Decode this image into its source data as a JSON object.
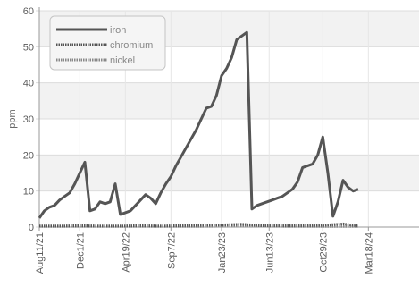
{
  "chart_data": {
    "type": "line",
    "ylabel": "ppm",
    "ylim": [
      0,
      60
    ],
    "yticks": [
      0,
      10,
      20,
      30,
      40,
      50,
      60
    ],
    "xlim": [
      0,
      37.5
    ],
    "xticks": [
      {
        "label": "Aug11/21",
        "x": 0
      },
      {
        "label": "Dec1/21",
        "x": 4
      },
      {
        "label": "Apr19/22",
        "x": 8.5
      },
      {
        "label": "Sep7/22",
        "x": 13
      },
      {
        "label": "Jan23/23",
        "x": 18
      },
      {
        "label": "Jun13/23",
        "x": 22.7
      },
      {
        "label": "Oct29/23",
        "x": 28
      },
      {
        "label": "Mar18/24",
        "x": 32.5
      }
    ],
    "grid": true,
    "legend_position": "top-left",
    "series": [
      {
        "name": "iron",
        "color": "#555555",
        "style": "solid",
        "points": [
          [
            0,
            2.5
          ],
          [
            0.5,
            4.5
          ],
          [
            1,
            5.5
          ],
          [
            1.5,
            6
          ],
          [
            2,
            7.5
          ],
          [
            2.5,
            8.5
          ],
          [
            3,
            9.5
          ],
          [
            3.5,
            12
          ],
          [
            4,
            15
          ],
          [
            4.5,
            18
          ],
          [
            5,
            4.5
          ],
          [
            5.5,
            5
          ],
          [
            6,
            7
          ],
          [
            6.5,
            6.5
          ],
          [
            7,
            7
          ],
          [
            7.5,
            12
          ],
          [
            8,
            3.5
          ],
          [
            8.5,
            4
          ],
          [
            9,
            4.5
          ],
          [
            9.5,
            6
          ],
          [
            10,
            7.5
          ],
          [
            10.5,
            9
          ],
          [
            11,
            8
          ],
          [
            11.5,
            6.5
          ],
          [
            12,
            9.5
          ],
          [
            12.5,
            12
          ],
          [
            13,
            14
          ],
          [
            13.5,
            17
          ],
          [
            14,
            19.5
          ],
          [
            14.5,
            22
          ],
          [
            15,
            24.5
          ],
          [
            15.5,
            27
          ],
          [
            16,
            30
          ],
          [
            16.5,
            33
          ],
          [
            17,
            33.5
          ],
          [
            17.5,
            36.5
          ],
          [
            18,
            42
          ],
          [
            18.5,
            44
          ],
          [
            19,
            47
          ],
          [
            19.5,
            52
          ],
          [
            20,
            53
          ],
          [
            20.5,
            54
          ],
          [
            21,
            5
          ],
          [
            21.5,
            6
          ],
          [
            22,
            6.5
          ],
          [
            22.5,
            7
          ],
          [
            23,
            7.5
          ],
          [
            23.5,
            8
          ],
          [
            24,
            8.5
          ],
          [
            24.5,
            9.5
          ],
          [
            25,
            10.5
          ],
          [
            25.5,
            12.5
          ],
          [
            26,
            16.5
          ],
          [
            26.5,
            17
          ],
          [
            27,
            17.5
          ],
          [
            27.5,
            20
          ],
          [
            28,
            25
          ],
          [
            28.5,
            15
          ],
          [
            29,
            3
          ],
          [
            29.5,
            7
          ],
          [
            30,
            13
          ],
          [
            30.5,
            11
          ],
          [
            31,
            10
          ],
          [
            31.5,
            10.5
          ]
        ]
      },
      {
        "name": "chromium",
        "color": "#555555",
        "style": "dotted",
        "points": [
          [
            0,
            0.3
          ],
          [
            2,
            0.3
          ],
          [
            4,
            0.4
          ],
          [
            6,
            0.3
          ],
          [
            8,
            0.3
          ],
          [
            10,
            0.4
          ],
          [
            12,
            0.3
          ],
          [
            14,
            0.4
          ],
          [
            16,
            0.5
          ],
          [
            18,
            0.6
          ],
          [
            19,
            0.7
          ],
          [
            20,
            0.8
          ],
          [
            21,
            0.6
          ],
          [
            22,
            0.4
          ],
          [
            24,
            0.4
          ],
          [
            26,
            0.4
          ],
          [
            28,
            0.5
          ],
          [
            29,
            0.7
          ],
          [
            30,
            0.9
          ],
          [
            31,
            0.5
          ],
          [
            31.5,
            0.4
          ]
        ]
      },
      {
        "name": "nickel",
        "color": "#888888",
        "style": "dotted",
        "points": [
          [
            0,
            0.2
          ],
          [
            4,
            0.2
          ],
          [
            8,
            0.2
          ],
          [
            12,
            0.2
          ],
          [
            16,
            0.2
          ],
          [
            20,
            0.3
          ],
          [
            24,
            0.2
          ],
          [
            28,
            0.2
          ],
          [
            31.5,
            0.2
          ]
        ]
      }
    ]
  }
}
